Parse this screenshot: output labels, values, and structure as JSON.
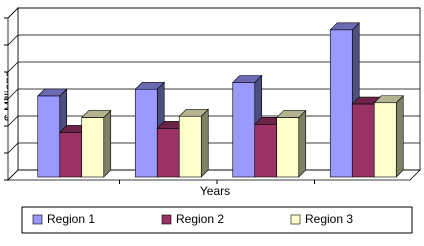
{
  "chart_data": {
    "type": "bar3d",
    "y_label": "$ Millions",
    "x_label": "Years",
    "categories": [
      null,
      null,
      null,
      null
    ],
    "series": [
      {
        "name": "Region 1",
        "color": "#9999ff",
        "values": [
          3.0,
          3.25,
          3.5,
          5.45
        ]
      },
      {
        "name": "Region 2",
        "color": "#993366",
        "values": [
          1.65,
          1.8,
          1.95,
          2.7
        ]
      },
      {
        "name": "Region 3",
        "color": "#ffffcc",
        "values": [
          2.2,
          2.25,
          2.2,
          2.75
        ]
      }
    ],
    "ylim": [
      0,
      6
    ],
    "yticks": [
      0,
      1,
      2,
      3,
      4,
      5,
      6
    ],
    "grid": true,
    "legend": "bottom"
  }
}
